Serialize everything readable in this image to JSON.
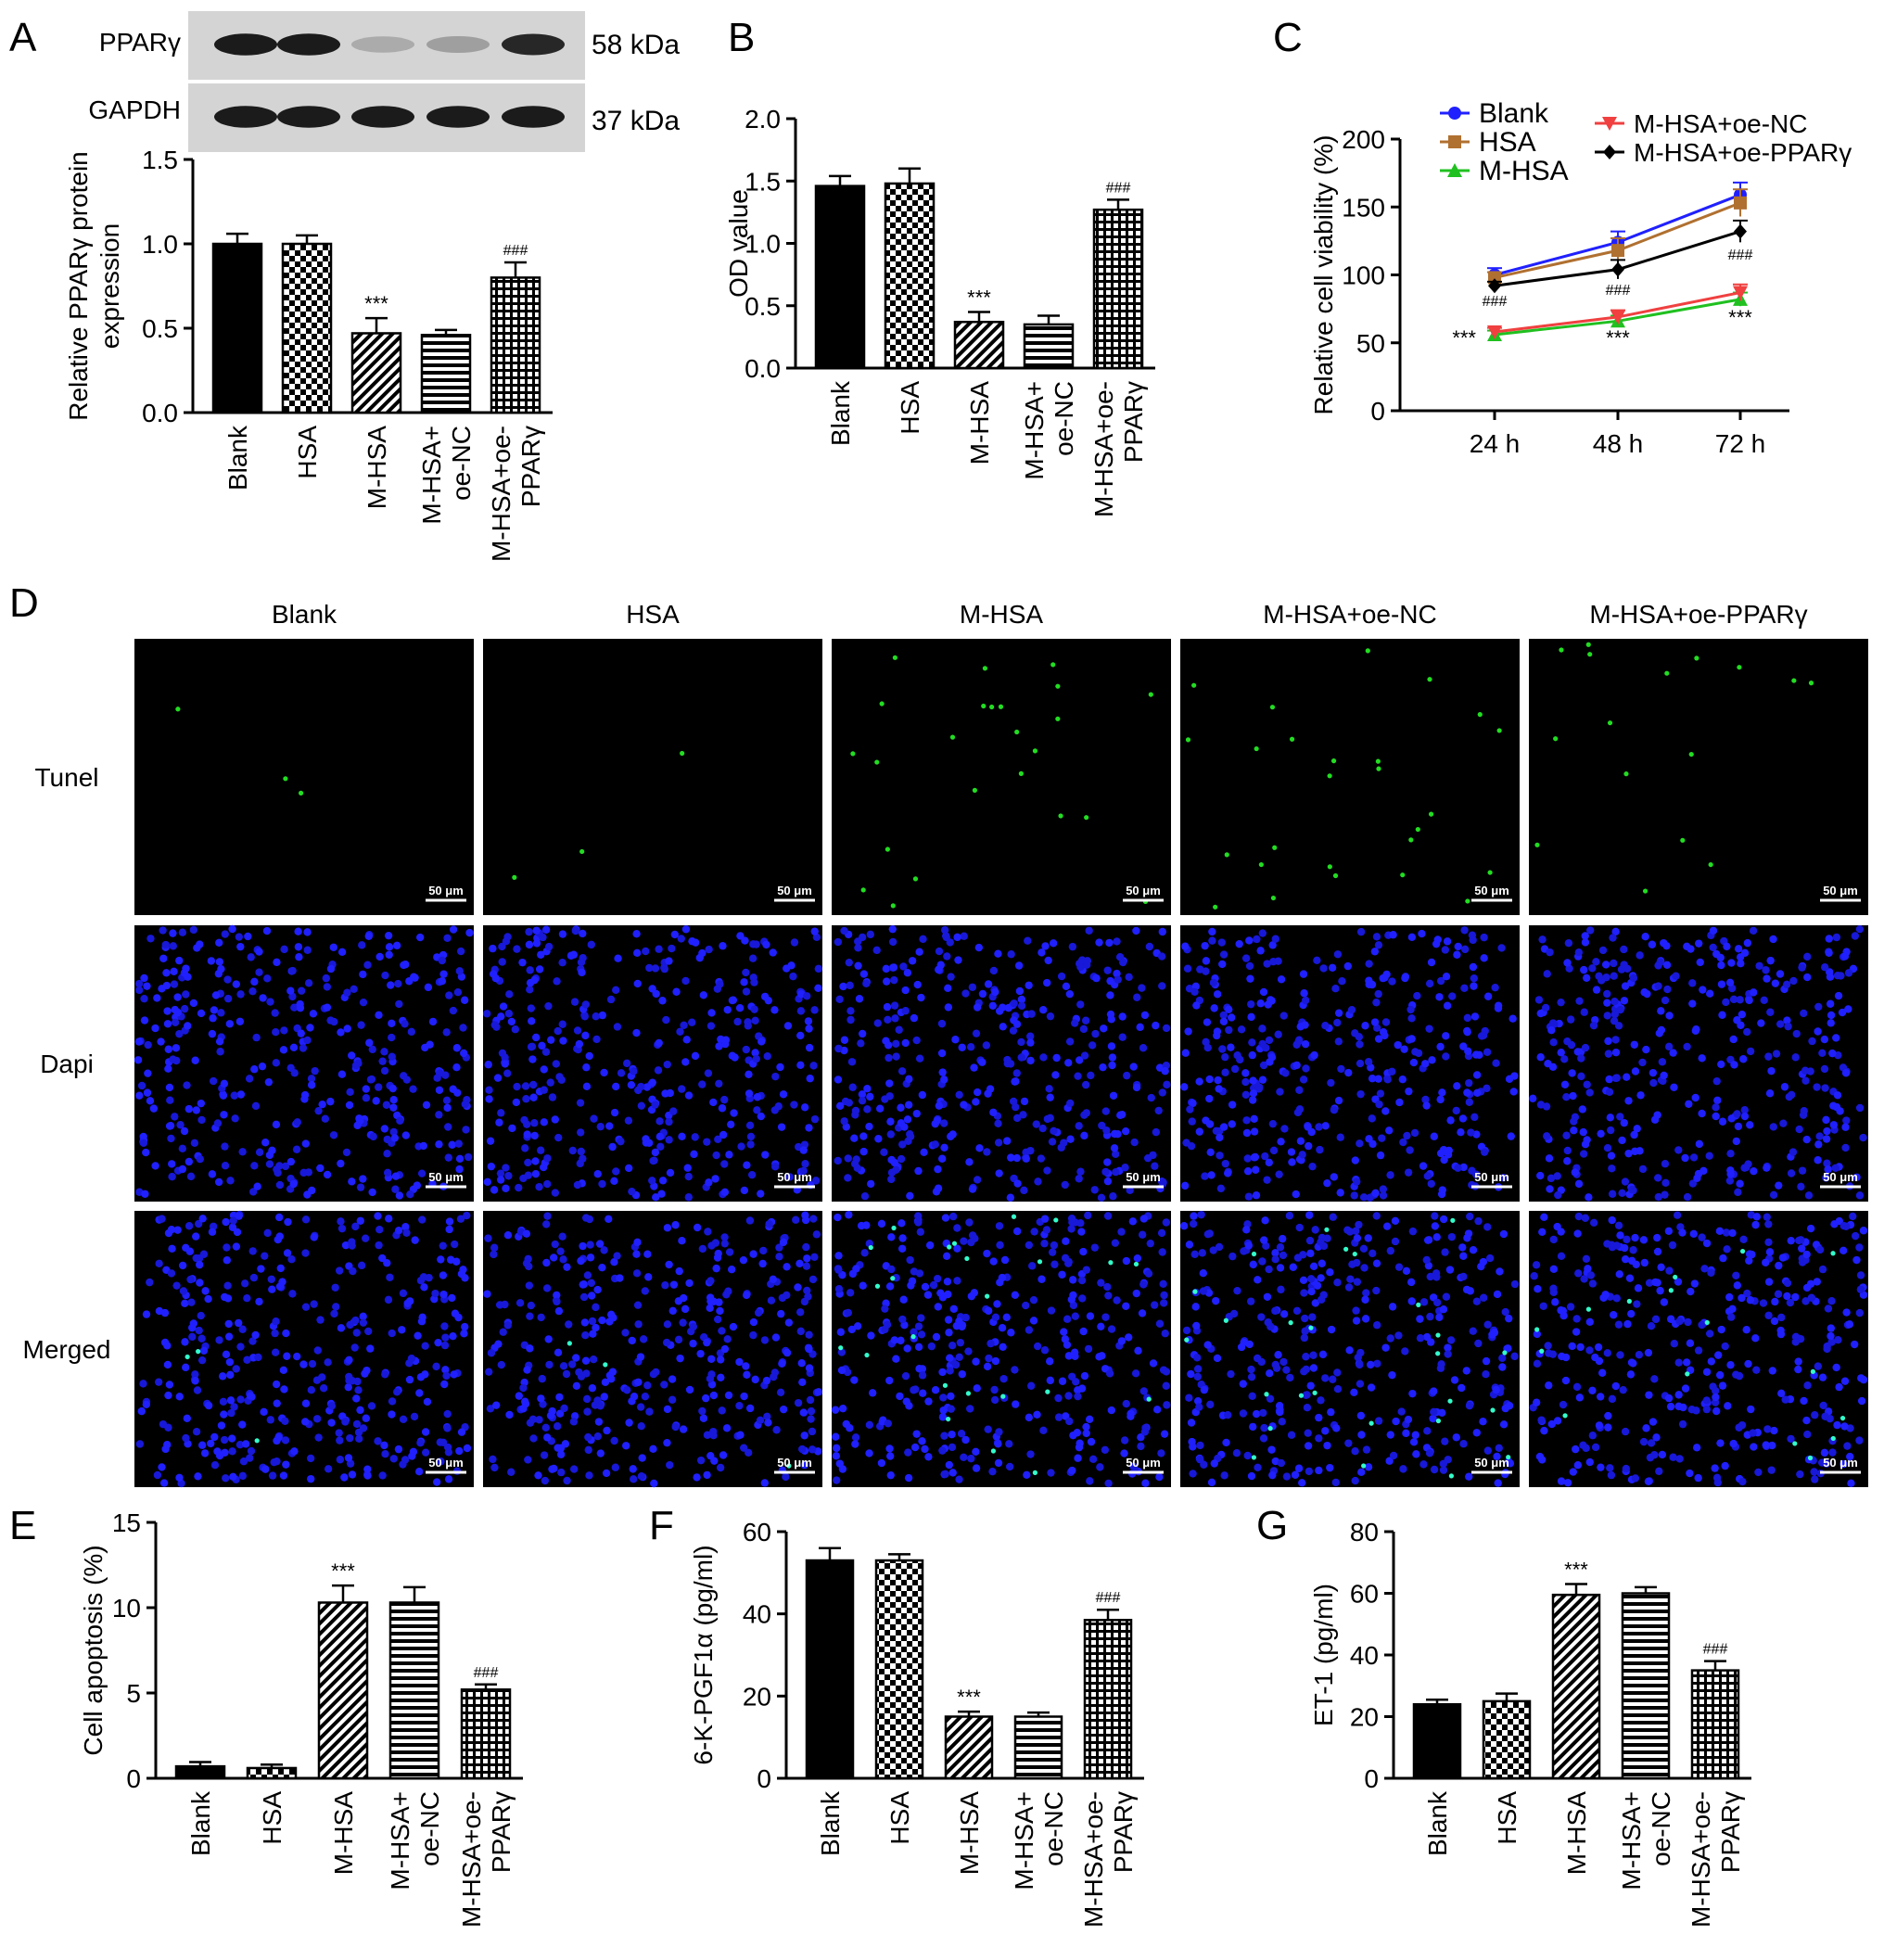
{
  "panels": {
    "a": "A",
    "b": "B",
    "c": "C",
    "d": "D",
    "e": "E",
    "f": "F",
    "g": "G"
  },
  "blot": {
    "rows": [
      {
        "protein": "PPARγ",
        "mw": "58 kDa",
        "intensity": [
          0.95,
          0.95,
          0.35,
          0.4,
          0.9
        ]
      },
      {
        "protein": "GAPDH",
        "mw": "37 kDa",
        "intensity": [
          0.95,
          0.95,
          0.95,
          0.95,
          0.95
        ]
      }
    ]
  },
  "groups": [
    "Blank",
    "HSA",
    "M-HSA",
    "M-HSA+oe-NC",
    "M-HSA+oe-PPARγ"
  ],
  "microscopy": {
    "columns": [
      "Blank",
      "HSA",
      "M-HSA",
      "M-HSA+oe-NC",
      "M-HSA+oe-PPARγ"
    ],
    "rows": [
      "Tunel",
      "Dapi",
      "Merged"
    ],
    "scale_bar": "50 μm"
  },
  "chart_data": [
    {
      "id": "A",
      "type": "bar",
      "categories": [
        "Blank",
        "HSA",
        "M-HSA",
        "M-HSA+oe-NC",
        "M-HSA+oe-PPARγ"
      ],
      "category_lines": [
        [
          "Blank"
        ],
        [
          "HSA"
        ],
        [
          "M-HSA"
        ],
        [
          "M-HSA+",
          "oe-NC"
        ],
        [
          "M-HSA+oe-",
          "PPARγ"
        ]
      ],
      "values": [
        1.0,
        1.0,
        0.47,
        0.46,
        0.8
      ],
      "errors": [
        0.06,
        0.05,
        0.09,
        0.03,
        0.09
      ],
      "annotations": [
        "",
        "",
        "***",
        "",
        "###"
      ],
      "ylabel": "Relative PPARγ protein expression",
      "ylabel_lines": [
        "Relative PPARγ protein",
        "expression"
      ],
      "ylim": [
        0,
        1.5
      ],
      "yticks": [
        "0.0",
        "0.5",
        "1.0",
        "1.5"
      ]
    },
    {
      "id": "B",
      "type": "bar",
      "categories": [
        "Blank",
        "HSA",
        "M-HSA",
        "M-HSA+oe-NC",
        "M-HSA+oe-PPARγ"
      ],
      "category_lines": [
        [
          "Blank"
        ],
        [
          "HSA"
        ],
        [
          "M-HSA"
        ],
        [
          "M-HSA+",
          "oe-NC"
        ],
        [
          "M-HSA+oe-",
          "PPARγ"
        ]
      ],
      "values": [
        1.46,
        1.48,
        0.37,
        0.35,
        1.27
      ],
      "errors": [
        0.08,
        0.12,
        0.08,
        0.07,
        0.08
      ],
      "annotations": [
        "",
        "",
        "***",
        "",
        "###"
      ],
      "ylabel": "OD value",
      "ylim": [
        0,
        2.0
      ],
      "yticks": [
        "0.0",
        "0.5",
        "1.0",
        "1.5",
        "2.0"
      ]
    },
    {
      "id": "C",
      "type": "line",
      "x": [
        "24 h",
        "48 h",
        "72 h"
      ],
      "series": [
        {
          "name": "Blank",
          "values": [
            100,
            124,
            159
          ],
          "errors": [
            5,
            8,
            9
          ],
          "color": "#2020ff",
          "marker": "circle"
        },
        {
          "name": "HSA",
          "values": [
            98,
            118,
            153
          ],
          "errors": [
            4,
            9,
            10
          ],
          "color": "#b07030",
          "marker": "square"
        },
        {
          "name": "M-HSA",
          "values": [
            56,
            66,
            82
          ],
          "errors": [
            3,
            4,
            5
          ],
          "color": "#20c020",
          "marker": "triangle"
        },
        {
          "name": "M-HSA+oe-NC",
          "values": [
            58,
            69,
            87
          ],
          "errors": [
            3,
            5,
            6
          ],
          "color": "#f04040",
          "marker": "triangle-down"
        },
        {
          "name": "M-HSA+oe-PPARγ",
          "values": [
            92,
            104,
            132
          ],
          "errors": [
            3,
            7,
            8
          ],
          "color": "#000000",
          "marker": "diamond"
        }
      ],
      "annotations": [
        {
          "label": "###",
          "x": "24 h"
        },
        {
          "label": "***",
          "x": "24 h"
        },
        {
          "label": "###",
          "x": "48 h"
        },
        {
          "label": "***",
          "x": "48 h"
        },
        {
          "label": "###",
          "x": "72 h"
        },
        {
          "label": "***",
          "x": "72 h"
        }
      ],
      "ylabel": "Relative cell viability (%)",
      "ylim": [
        0,
        200
      ],
      "yticks": [
        "0",
        "50",
        "100",
        "150",
        "200"
      ]
    },
    {
      "id": "E",
      "type": "bar",
      "categories": [
        "Blank",
        "HSA",
        "M-HSA",
        "M-HSA+oe-NC",
        "M-HSA+oe-PPARγ"
      ],
      "category_lines": [
        [
          "Blank"
        ],
        [
          "HSA"
        ],
        [
          "M-HSA"
        ],
        [
          "M-HSA+",
          "oe-NC"
        ],
        [
          "M-HSA+oe-",
          "PPARγ"
        ]
      ],
      "values": [
        0.7,
        0.6,
        10.3,
        10.3,
        5.2
      ],
      "errors": [
        0.25,
        0.2,
        1.0,
        0.9,
        0.3
      ],
      "annotations": [
        "",
        "",
        "***",
        "",
        "###"
      ],
      "ylabel": "Cell apoptosis (%)",
      "ylim": [
        0,
        15
      ],
      "yticks": [
        "0",
        "5",
        "10",
        "15"
      ]
    },
    {
      "id": "F",
      "type": "bar",
      "categories": [
        "Blank",
        "HSA",
        "M-HSA",
        "M-HSA+oe-NC",
        "M-HSA+oe-PPARγ"
      ],
      "category_lines": [
        [
          "Blank"
        ],
        [
          "HSA"
        ],
        [
          "M-HSA"
        ],
        [
          "M-HSA+",
          "oe-NC"
        ],
        [
          "M-HSA+oe-",
          "PPARγ"
        ]
      ],
      "values": [
        53,
        53,
        15,
        15,
        38.5
      ],
      "errors": [
        3,
        1.5,
        1.2,
        1.0,
        2.5
      ],
      "annotations": [
        "",
        "",
        "***",
        "",
        "###"
      ],
      "ylabel": "6-K-PGF1α (pg/ml)",
      "ylim": [
        0,
        60
      ],
      "yticks": [
        "0",
        "20",
        "40",
        "60"
      ]
    },
    {
      "id": "G",
      "type": "bar",
      "categories": [
        "Blank",
        "HSA",
        "M-HSA",
        "M-HSA+oe-NC",
        "M-HSA+oe-PPARγ"
      ],
      "category_lines": [
        [
          "Blank"
        ],
        [
          "HSA"
        ],
        [
          "M-HSA"
        ],
        [
          "M-HSA+",
          "oe-NC"
        ],
        [
          "M-HSA+oe-",
          "PPARγ"
        ]
      ],
      "values": [
        24,
        25,
        59.5,
        60,
        35
      ],
      "errors": [
        1.5,
        2.5,
        3.5,
        2.0,
        3.0
      ],
      "annotations": [
        "",
        "",
        "***",
        "",
        "###"
      ],
      "ylabel": "ET-1 (pg/ml)",
      "ylim": [
        0,
        80
      ],
      "yticks": [
        "0",
        "20",
        "40",
        "60",
        "80"
      ]
    }
  ]
}
